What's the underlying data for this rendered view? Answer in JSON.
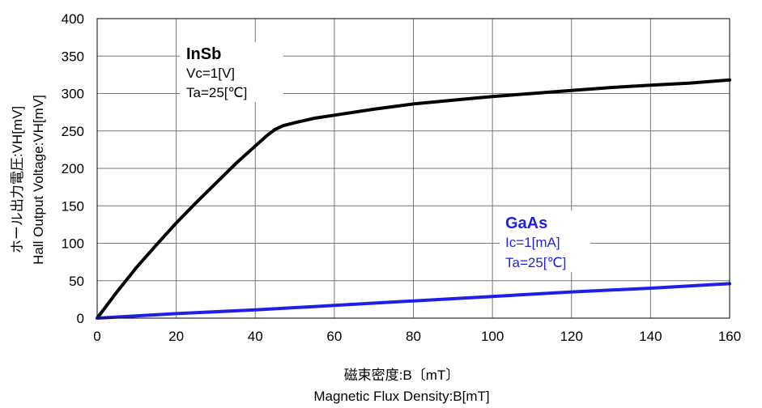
{
  "chart_data": {
    "type": "line",
    "xlim": [
      0,
      160
    ],
    "ylim": [
      0,
      400
    ],
    "xticks": [
      0,
      20,
      40,
      60,
      80,
      100,
      120,
      140,
      160
    ],
    "yticks": [
      0,
      50,
      100,
      150,
      200,
      250,
      300,
      350,
      400
    ],
    "grid": true,
    "xlabel": [
      "磁束密度:B〔mT〕",
      "Magnetic Flux Density:B[mT]"
    ],
    "ylabel": [
      "ホール出力電圧:VH[mV]",
      "Hall Output Voltage:VH[mV]"
    ],
    "series": [
      {
        "name": "InSb",
        "color": "#000000",
        "x": [
          0,
          5,
          10,
          15,
          20,
          25,
          30,
          35,
          40,
          43,
          45,
          47,
          50,
          55,
          60,
          70,
          80,
          90,
          100,
          110,
          120,
          130,
          140,
          150,
          160
        ],
        "y": [
          0,
          35,
          68,
          98,
          127,
          154,
          180,
          206,
          230,
          244,
          252,
          257,
          261,
          267,
          271,
          279,
          286,
          291,
          296,
          300,
          304,
          308,
          311,
          314,
          318
        ]
      },
      {
        "name": "GaAs",
        "color": "#1f1fe6",
        "x": [
          0,
          20,
          40,
          60,
          80,
          100,
          120,
          140,
          160
        ],
        "y": [
          0,
          6,
          11,
          17,
          23,
          29,
          35,
          40,
          46
        ]
      }
    ],
    "annotations": [
      {
        "series": "InSb",
        "name": "InSb",
        "lines": [
          "Vc=1[V]",
          "Ta=25[℃]"
        ],
        "color": "#000000"
      },
      {
        "series": "GaAs",
        "name": "GaAs",
        "lines": [
          "Ic=1[mA]",
          "Ta=25[℃]"
        ],
        "color": "#1f1fe6"
      }
    ]
  }
}
